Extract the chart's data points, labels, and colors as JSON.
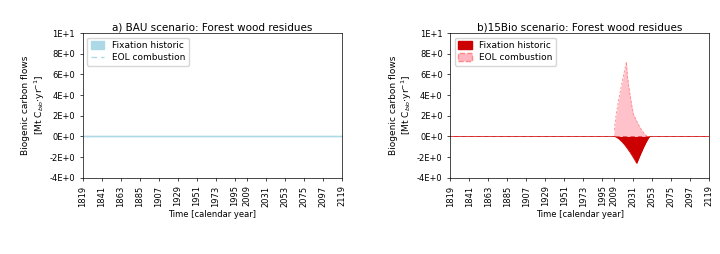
{
  "title_a": "a) BAU scenario: Forest wood residues",
  "title_b": "b)15Bio scenario: Forest wood residues",
  "xlabel": "Time [calendar year]",
  "ylim": [
    -4,
    10
  ],
  "ytick_vals": [
    -4,
    -2,
    0,
    2,
    4,
    6,
    8,
    10
  ],
  "ytick_labels": [
    "-4E+0",
    "-2E+0",
    "0E+0",
    "2E+0",
    "4E+0",
    "6E+0",
    "8E+0",
    "1E+1"
  ],
  "xtick_years": [
    1819,
    1841,
    1863,
    1885,
    1907,
    1929,
    1951,
    1973,
    1995,
    2009,
    2031,
    2053,
    2075,
    2097,
    2119
  ],
  "color_fix_a": "#ADD8E6",
  "color_eol_a": "#ADD8E6",
  "color_fix_b": "#CC0000",
  "color_eol_b": "#FFB6C1",
  "color_eol_b_edge": "#FF8888",
  "legend_fix_a": "Fixation historic",
  "legend_eol_a": "EOL combustion",
  "legend_fix_b": "Fixation historic",
  "legend_eol_b": "EOL combustion",
  "title_fontsize": 7.5,
  "tick_fontsize": 6.0,
  "ylabel_fontsize": 6.5,
  "legend_fontsize": 6.5
}
